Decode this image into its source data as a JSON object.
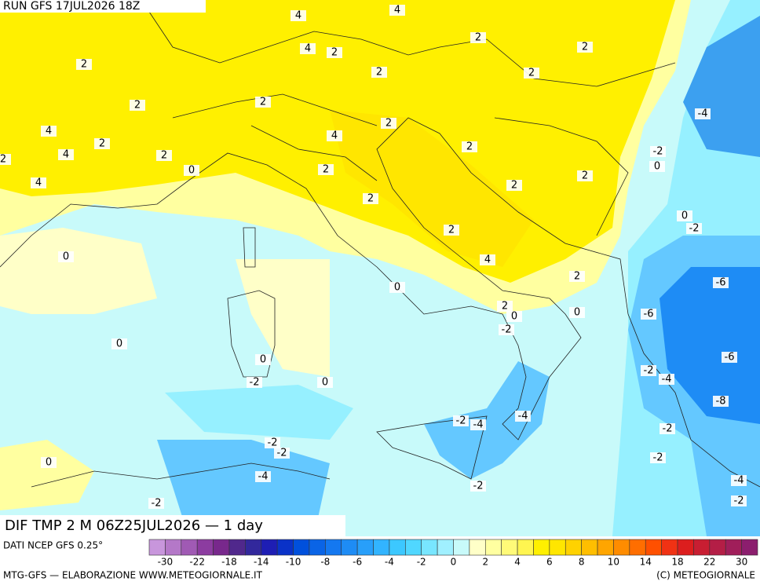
{
  "header": {
    "run": "RUN GFS 17JUL2026 18Z"
  },
  "map": {
    "title": "DIF TMP 2 M 06Z25JUL2026 — 1 day",
    "contour_labels": [
      4,
      4,
      2,
      2,
      2,
      4,
      2,
      2,
      2,
      2,
      2,
      -4,
      2,
      4,
      2,
      4,
      4,
      2,
      2,
      -2,
      2,
      0,
      2,
      0,
      2,
      4,
      2,
      2,
      0,
      -2,
      2,
      0,
      4,
      2,
      -6,
      0,
      2,
      0,
      0,
      -6,
      -2,
      0,
      0,
      -6,
      -2,
      -4,
      -2,
      0,
      -8,
      -4,
      -2,
      -4,
      -2,
      -2,
      -2,
      -2,
      0,
      -4,
      -2,
      -4,
      -2,
      -2
    ]
  },
  "source": "DATI NCEP GFS 0.25°",
  "colorbar": {
    "labels": [
      -30,
      -22,
      -18,
      -14,
      -10,
      -8,
      -6,
      -4,
      -2,
      0,
      2,
      4,
      6,
      8,
      10,
      14,
      18,
      22,
      30
    ],
    "colors": [
      "#c896dc",
      "#b478c8",
      "#a05ab4",
      "#8c3ca0",
      "#78288c",
      "#50288c",
      "#32289c",
      "#1e1eb4",
      "#0a32c8",
      "#0050dc",
      "#0a64e6",
      "#1478f0",
      "#1e8cf5",
      "#289ffa",
      "#32b4ff",
      "#3cc8ff",
      "#50d7ff",
      "#78e6ff",
      "#a0f0ff",
      "#c8fafa",
      "#ffffc8",
      "#ffffa0",
      "#fffa78",
      "#fff550",
      "#fff000",
      "#ffe600",
      "#ffd200",
      "#ffbe00",
      "#ffa500",
      "#ff8c00",
      "#ff6e00",
      "#ff5000",
      "#f03214",
      "#dc1e1e",
      "#c81e32",
      "#b41e46",
      "#a01e5a",
      "#8c1e6e"
    ]
  },
  "footer": {
    "left": "MTG-GFS — ELABORAZIONE WWW.METEOGIORNALE.IT",
    "right": "(C) METEOGIORNALE"
  }
}
